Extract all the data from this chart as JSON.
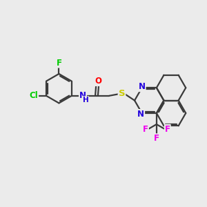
{
  "bg_color": "#ebebeb",
  "bond_color": "#3a3a3a",
  "atom_colors": {
    "F": "#00cc00",
    "Cl": "#00cc00",
    "NH": "#2200dd",
    "O": "#ff0000",
    "S": "#cccc00",
    "N": "#2200dd",
    "F_cf3": "#ee00ee"
  },
  "bond_width": 1.6,
  "figsize": [
    3.0,
    3.0
  ],
  "dpi": 100
}
